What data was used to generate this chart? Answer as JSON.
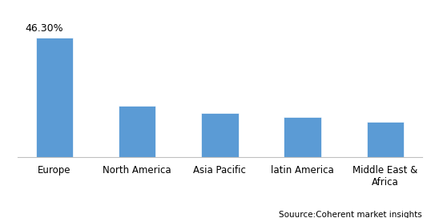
{
  "categories": [
    "Europe",
    "North America",
    "Asia Pacific",
    "latin America",
    "Middle East &\nAfrica"
  ],
  "values": [
    46.3,
    20.0,
    17.0,
    15.5,
    13.5
  ],
  "bar_color": "#5B9BD5",
  "annotation_label": "46.30%",
  "source_text": "Souurce:Coherent market insights",
  "ylim": [
    0,
    55
  ],
  "background_color": "#ffffff",
  "bar_width": 0.45,
  "tick_fontsize": 8.5,
  "source_fontsize": 7.5,
  "annotation_fontsize": 9,
  "border_color": "#a0a0a0"
}
